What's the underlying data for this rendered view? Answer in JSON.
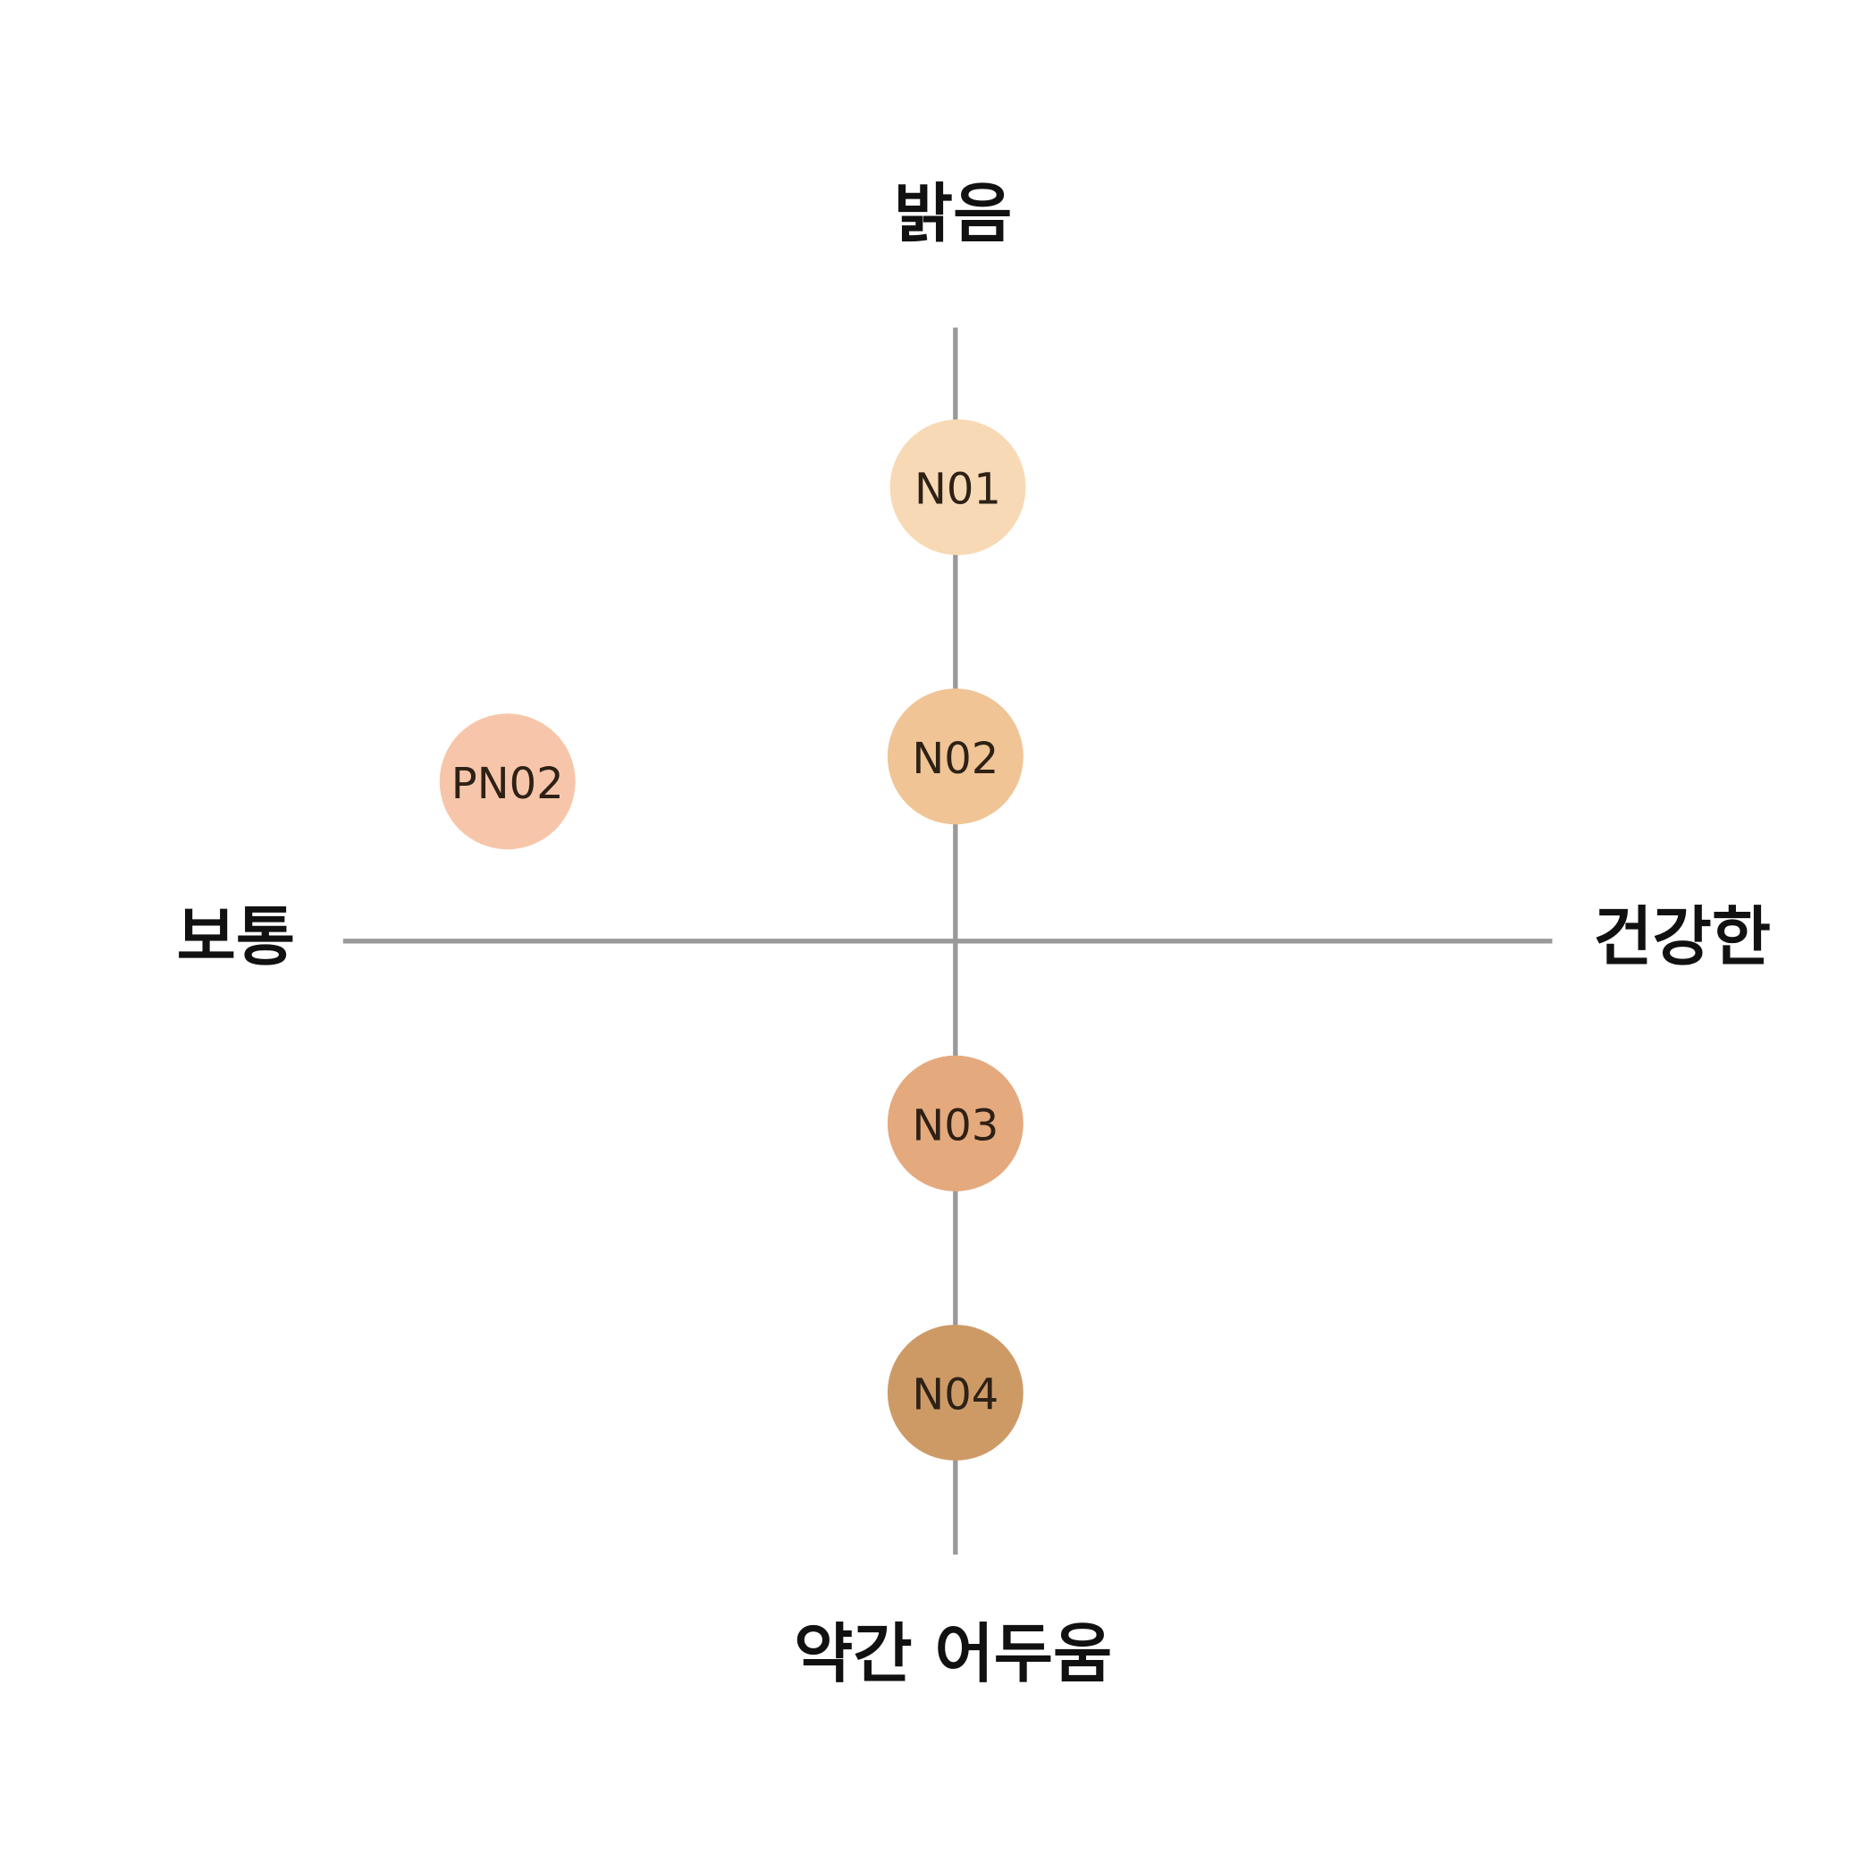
{
  "axes": {
    "top": "밝음",
    "bottom": "약간 어두움",
    "left": "보통",
    "right": "건강한",
    "line_color": "#999999"
  },
  "swatches": [
    {
      "label": "N01",
      "color": "#F8D9B5"
    },
    {
      "label": "N02",
      "color": "#F0C495"
    },
    {
      "label": "PN02",
      "color": "#F7C6AA"
    },
    {
      "label": "N03",
      "color": "#E5A97E"
    },
    {
      "label": "N04",
      "color": "#CD9A66"
    }
  ]
}
